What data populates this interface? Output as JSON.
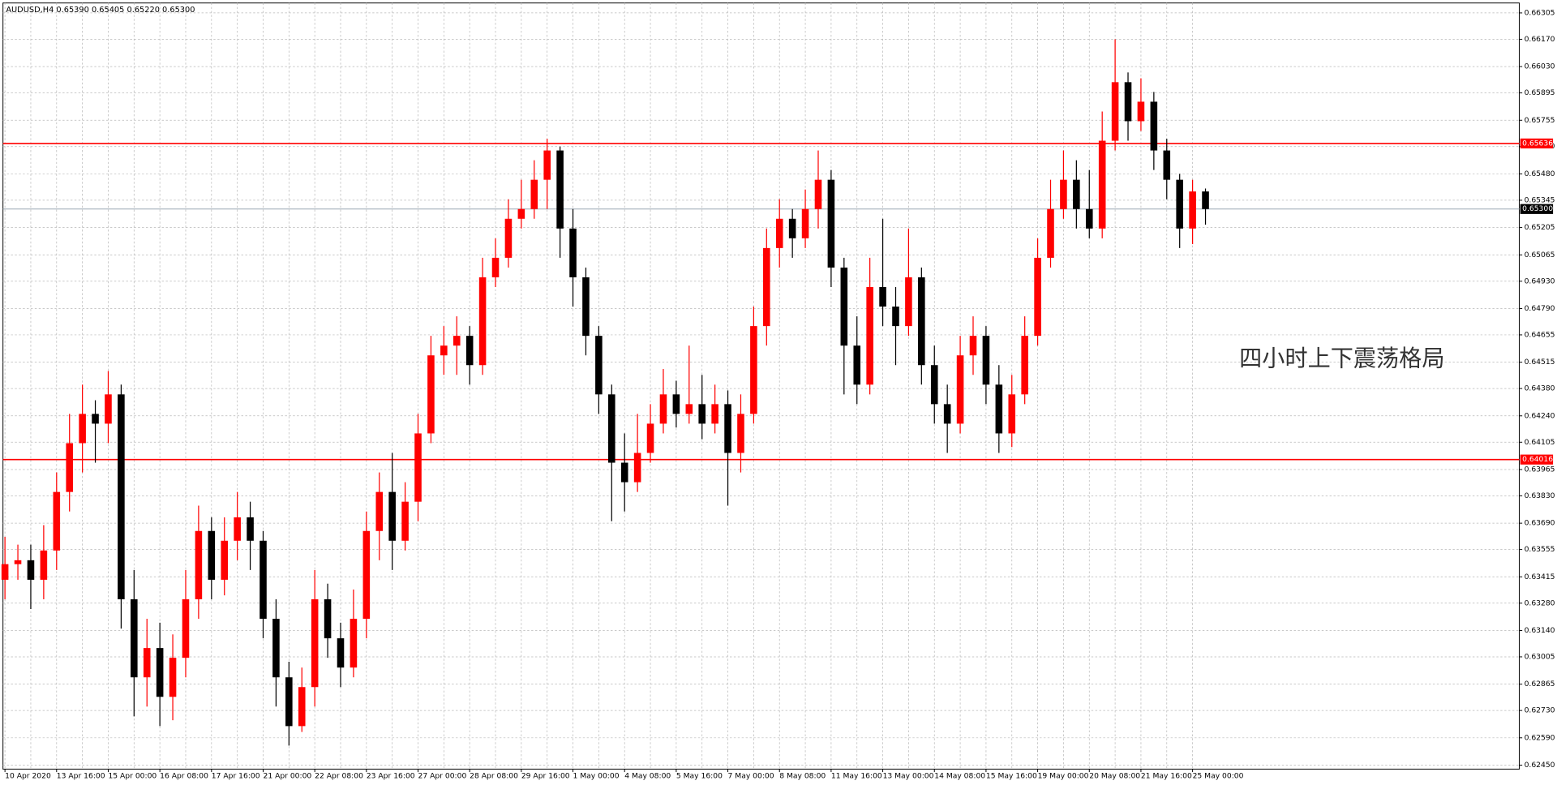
{
  "chart_data": {
    "type": "candlestick",
    "header": "AUDUSD,H4  0.65390 0.65405 0.65220 0.65300",
    "annotation": "四小时上下震荡格局",
    "up_color": "#ff0000",
    "down_color": "#000000",
    "grid": true,
    "categories": [
      "10 Apr 2020",
      null,
      null,
      null,
      "13 Apr 16:00",
      null,
      null,
      null,
      "15 Apr 00:00",
      null,
      null,
      null,
      "16 Apr 08:00",
      null,
      null,
      null,
      "17 Apr 16:00",
      null,
      null,
      null,
      "21 Apr 00:00",
      null,
      null,
      null,
      "22 Apr 08:00",
      null,
      null,
      null,
      "23 Apr 16:00",
      null,
      null,
      null,
      "27 Apr 00:00",
      null,
      null,
      null,
      "28 Apr 08:00",
      null,
      null,
      null,
      "29 Apr 16:00",
      null,
      null,
      null,
      "1 May 00:00",
      null,
      null,
      null,
      "4 May 08:00",
      null,
      null,
      null,
      "5 May 16:00",
      null,
      null,
      null,
      "7 May 00:00",
      null,
      null,
      null,
      "8 May 08:00",
      null,
      null,
      null,
      "11 May 16:00",
      null,
      null,
      null,
      "13 May 00:00",
      null,
      null,
      null,
      "14 May 08:00",
      null,
      null,
      null,
      "15 May 16:00",
      null,
      null,
      null,
      "19 May 00:00",
      null,
      null,
      null,
      "20 May 08:00",
      null,
      null,
      null,
      "21 May 16:00",
      null,
      null,
      null,
      "25 May 00:00",
      null
    ],
    "open": [
      0.634,
      0.6348,
      0.635,
      0.634,
      0.6355,
      0.6385,
      0.641,
      0.6425,
      0.642,
      0.6435,
      0.633,
      0.629,
      0.6305,
      0.628,
      0.63,
      0.633,
      0.6365,
      0.634,
      0.636,
      0.6372,
      0.636,
      0.632,
      0.629,
      0.6265,
      0.6285,
      0.633,
      0.631,
      0.6295,
      0.632,
      0.6365,
      0.6385,
      0.636,
      0.638,
      0.6415,
      0.6455,
      0.646,
      0.6465,
      0.645,
      0.6495,
      0.6505,
      0.6525,
      0.653,
      0.6545,
      0.656,
      0.652,
      0.6495,
      0.6465,
      0.6435,
      0.64,
      0.639,
      0.6405,
      0.642,
      0.6435,
      0.6425,
      0.643,
      0.642,
      0.643,
      0.6405,
      0.6425,
      0.647,
      0.651,
      0.6525,
      0.6515,
      0.653,
      0.6545,
      0.65,
      0.646,
      0.644,
      0.649,
      0.648,
      0.647,
      0.6495,
      0.645,
      0.643,
      0.642,
      0.6455,
      0.6465,
      0.644,
      0.6415,
      0.6435,
      0.6465,
      0.6505,
      0.653,
      0.6545,
      0.653,
      0.652,
      0.6565,
      0.6595,
      0.6575,
      0.6585,
      0.656,
      0.6545,
      0.652,
      0.6539
    ],
    "high": [
      0.6362,
      0.6358,
      0.6358,
      0.6368,
      0.6395,
      0.6425,
      0.644,
      0.6432,
      0.6447,
      0.644,
      0.6345,
      0.632,
      0.6318,
      0.6312,
      0.6345,
      0.6378,
      0.6372,
      0.6372,
      0.6385,
      0.638,
      0.6365,
      0.633,
      0.6298,
      0.6295,
      0.6345,
      0.6338,
      0.6318,
      0.6335,
      0.6375,
      0.6395,
      0.6405,
      0.639,
      0.6425,
      0.6465,
      0.647,
      0.6475,
      0.647,
      0.6505,
      0.6515,
      0.6535,
      0.6545,
      0.6555,
      0.6566,
      0.6562,
      0.653,
      0.65,
      0.647,
      0.644,
      0.6415,
      0.6425,
      0.643,
      0.6448,
      0.6442,
      0.646,
      0.6445,
      0.644,
      0.6437,
      0.6435,
      0.648,
      0.652,
      0.6535,
      0.653,
      0.654,
      0.656,
      0.655,
      0.6505,
      0.6475,
      0.6505,
      0.6525,
      0.649,
      0.652,
      0.65,
      0.646,
      0.644,
      0.6465,
      0.6475,
      0.647,
      0.645,
      0.6445,
      0.6475,
      0.6515,
      0.6545,
      0.656,
      0.6555,
      0.655,
      0.658,
      0.6617,
      0.66,
      0.6597,
      0.659,
      0.6566,
      0.6548,
      0.6545,
      0.65405
    ],
    "low": [
      0.633,
      0.634,
      0.6325,
      0.633,
      0.6345,
      0.6375,
      0.6395,
      0.64,
      0.641,
      0.6315,
      0.627,
      0.6275,
      0.6265,
      0.6268,
      0.629,
      0.632,
      0.633,
      0.6332,
      0.635,
      0.6345,
      0.631,
      0.6275,
      0.6255,
      0.6262,
      0.6275,
      0.63,
      0.6285,
      0.629,
      0.631,
      0.635,
      0.6345,
      0.6355,
      0.637,
      0.641,
      0.6445,
      0.6445,
      0.644,
      0.6445,
      0.649,
      0.65,
      0.652,
      0.6525,
      0.653,
      0.6505,
      0.648,
      0.6455,
      0.6425,
      0.637,
      0.6375,
      0.6385,
      0.64,
      0.6415,
      0.6418,
      0.642,
      0.6412,
      0.6415,
      0.6378,
      0.6395,
      0.642,
      0.646,
      0.65,
      0.6505,
      0.651,
      0.652,
      0.649,
      0.6435,
      0.643,
      0.6435,
      0.647,
      0.645,
      0.6465,
      0.644,
      0.642,
      0.6405,
      0.6415,
      0.6445,
      0.643,
      0.6405,
      0.6408,
      0.643,
      0.646,
      0.65,
      0.6525,
      0.652,
      0.6515,
      0.6515,
      0.656,
      0.6565,
      0.657,
      0.655,
      0.6535,
      0.651,
      0.6512,
      0.6522
    ],
    "close": [
      0.6348,
      0.635,
      0.634,
      0.6355,
      0.6385,
      0.641,
      0.6425,
      0.642,
      0.6435,
      0.633,
      0.629,
      0.6305,
      0.628,
      0.63,
      0.633,
      0.6365,
      0.634,
      0.636,
      0.6372,
      0.636,
      0.632,
      0.629,
      0.6265,
      0.6285,
      0.633,
      0.631,
      0.6295,
      0.632,
      0.6365,
      0.6385,
      0.636,
      0.638,
      0.6415,
      0.6455,
      0.646,
      0.6465,
      0.645,
      0.6495,
      0.6505,
      0.6525,
      0.653,
      0.6545,
      0.656,
      0.652,
      0.6495,
      0.6465,
      0.6435,
      0.64,
      0.639,
      0.6405,
      0.642,
      0.6435,
      0.6425,
      0.643,
      0.642,
      0.643,
      0.6405,
      0.6425,
      0.647,
      0.651,
      0.6525,
      0.6515,
      0.653,
      0.6545,
      0.65,
      0.646,
      0.644,
      0.649,
      0.648,
      0.647,
      0.6495,
      0.645,
      0.643,
      0.642,
      0.6455,
      0.6465,
      0.644,
      0.6415,
      0.6435,
      0.6465,
      0.6505,
      0.653,
      0.6545,
      0.653,
      0.652,
      0.6565,
      0.6595,
      0.6575,
      0.6585,
      0.656,
      0.6545,
      0.652,
      0.6539,
      0.653
    ],
    "ylim": [
      0.6245,
      0.66305
    ],
    "yticks": [
      {
        "value": 0.6245,
        "label": "0.62450"
      },
      {
        "value": 0.6259,
        "label": "0.62590"
      },
      {
        "value": 0.6273,
        "label": "0.62730"
      },
      {
        "value": 0.62865,
        "label": "0.62865"
      },
      {
        "value": 0.63005,
        "label": "0.63005"
      },
      {
        "value": 0.6314,
        "label": "0.63140"
      },
      {
        "value": 0.6328,
        "label": "0.63280"
      },
      {
        "value": 0.63415,
        "label": "0.63415"
      },
      {
        "value": 0.63555,
        "label": "0.63555"
      },
      {
        "value": 0.6369,
        "label": "0.63690"
      },
      {
        "value": 0.6383,
        "label": "0.63830"
      },
      {
        "value": 0.63965,
        "label": "0.63965"
      },
      {
        "value": 0.64105,
        "label": "0.64105"
      },
      {
        "value": 0.6424,
        "label": "0.64240"
      },
      {
        "value": 0.6438,
        "label": "0.64380"
      },
      {
        "value": 0.64515,
        "label": "0.64515"
      },
      {
        "value": 0.64655,
        "label": "0.64655"
      },
      {
        "value": 0.6479,
        "label": "0.64790"
      },
      {
        "value": 0.6493,
        "label": "0.64930"
      },
      {
        "value": 0.65065,
        "label": "0.65065"
      },
      {
        "value": 0.65205,
        "label": "0.65205"
      },
      {
        "value": 0.65345,
        "label": "0.65345"
      },
      {
        "value": 0.6548,
        "label": "0.65480"
      },
      {
        "value": 0.6562,
        "label": "0.65620"
      },
      {
        "value": 0.65755,
        "label": "0.65755"
      },
      {
        "value": 0.65895,
        "label": "0.65895"
      },
      {
        "value": 0.6603,
        "label": "0.66030"
      },
      {
        "value": 0.6617,
        "label": "0.66170"
      },
      {
        "value": 0.66305,
        "label": "0.66305"
      }
    ],
    "hlines": [
      {
        "value": 0.65636,
        "label": "0.65636",
        "color": "#ff0000"
      },
      {
        "value": 0.64016,
        "label": "0.64016",
        "color": "#ff0000"
      },
      {
        "value": 0.653,
        "label": "0.65300",
        "color": "#9aa7b4"
      }
    ]
  }
}
